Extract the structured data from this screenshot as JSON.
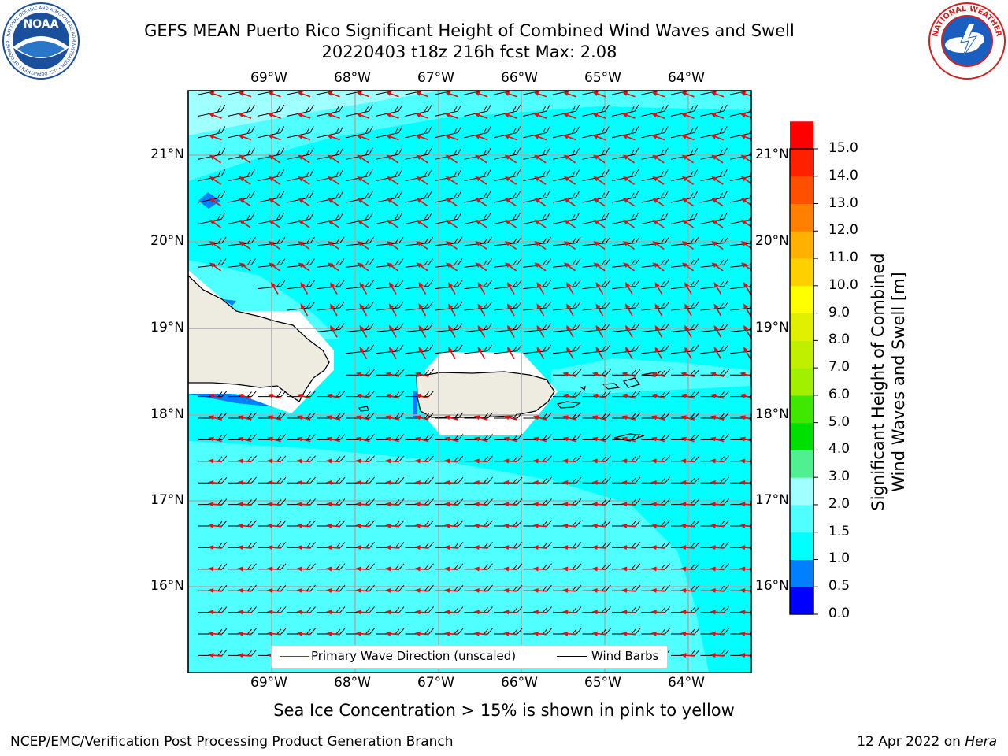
{
  "header": {
    "title_line1": "GEFS MEAN Puerto Rico Significant Height of Combined Wind Waves and Swell",
    "title_line2": "20220403 t18z 216h fcst   Max: 2.08"
  },
  "logos": {
    "left": {
      "name": "NOAA",
      "ring_text": "NATIONAL OCEANIC AND ATMOSPHERIC ADMINISTRATION • U.S. DEPARTMENT OF COMMERCE"
    },
    "right": {
      "name": "NATIONAL WEATHER SERVICE"
    }
  },
  "map": {
    "lon_labels": [
      "69°W",
      "68°W",
      "67°W",
      "66°W",
      "65°W",
      "64°W"
    ],
    "lat_labels": [
      "21°N",
      "20°N",
      "19°N",
      "18°N",
      "17°N",
      "16°N"
    ],
    "lon_range": [
      -70.0,
      -63.25
    ],
    "lat_range": [
      15.0,
      21.75
    ],
    "gridlines": true
  },
  "legend": {
    "primary_wave": "Primary Wave Direction (unscaled)",
    "wind_barbs": "Wind Barbs",
    "primary_wave_color": "#e01010",
    "wind_barbs_color": "#000000"
  },
  "colorbar": {
    "label_line1": "Significant Height of Combined",
    "label_line2": "Wind Waves and Swell [m]",
    "ticks": [
      "15.0",
      "14.0",
      "13.0",
      "12.0",
      "11.0",
      "10.0",
      "9.0",
      "8.0",
      "7.0",
      "6.0",
      "5.0",
      "4.0",
      "3.0",
      "2.0",
      "1.5",
      "1.0",
      "0.5",
      "0.0"
    ],
    "colors_bottom_to_top": [
      "#0000ff",
      "#0080ff",
      "#00ffff",
      "#50ffff",
      "#a0ffff",
      "#50f090",
      "#00e000",
      "#40e800",
      "#a0f000",
      "#c0f000",
      "#e0f000",
      "#ffff00",
      "#ffd000",
      "#ffb000",
      "#ff8000",
      "#ff5000",
      "#ff2000",
      "#ff0000"
    ]
  },
  "footer": {
    "note": "Sea Ice Concentration > 15% is shown in pink to yellow",
    "left": "NCEP/EMC/Verification Post Processing Product Generation Branch",
    "right_date": "12 Apr 2022 on ",
    "right_machine": "Hera"
  }
}
